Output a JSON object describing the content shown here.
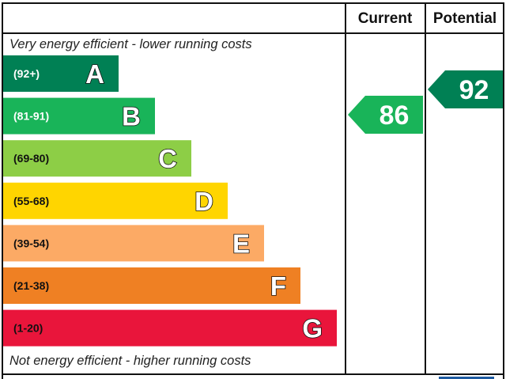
{
  "chart_data": {
    "type": "bar",
    "headers": {
      "current": "Current",
      "potential": "Potential"
    },
    "top_caption": "Very energy efficient - lower running costs",
    "bottom_caption": "Not energy efficient - higher running costs",
    "bands": [
      {
        "letter": "A",
        "range": "(92+)",
        "color": "#008054",
        "text_color": "#ffffff"
      },
      {
        "letter": "B",
        "range": "(81-91)",
        "color": "#19b459",
        "text_color": "#ffffff"
      },
      {
        "letter": "C",
        "range": "(69-80)",
        "color": "#8dce46",
        "text_color": "#111111"
      },
      {
        "letter": "D",
        "range": "(55-68)",
        "color": "#ffd500",
        "text_color": "#111111"
      },
      {
        "letter": "E",
        "range": "(39-54)",
        "color": "#fcaa65",
        "text_color": "#111111"
      },
      {
        "letter": "F",
        "range": "(21-38)",
        "color": "#ef8023",
        "text_color": "#111111"
      },
      {
        "letter": "G",
        "range": "(1-20)",
        "color": "#e9153b",
        "text_color": "#111111"
      }
    ],
    "current": {
      "value": 86,
      "band": "B",
      "color": "#19b459"
    },
    "potential": {
      "value": 92,
      "band": "A",
      "color": "#008054"
    }
  }
}
